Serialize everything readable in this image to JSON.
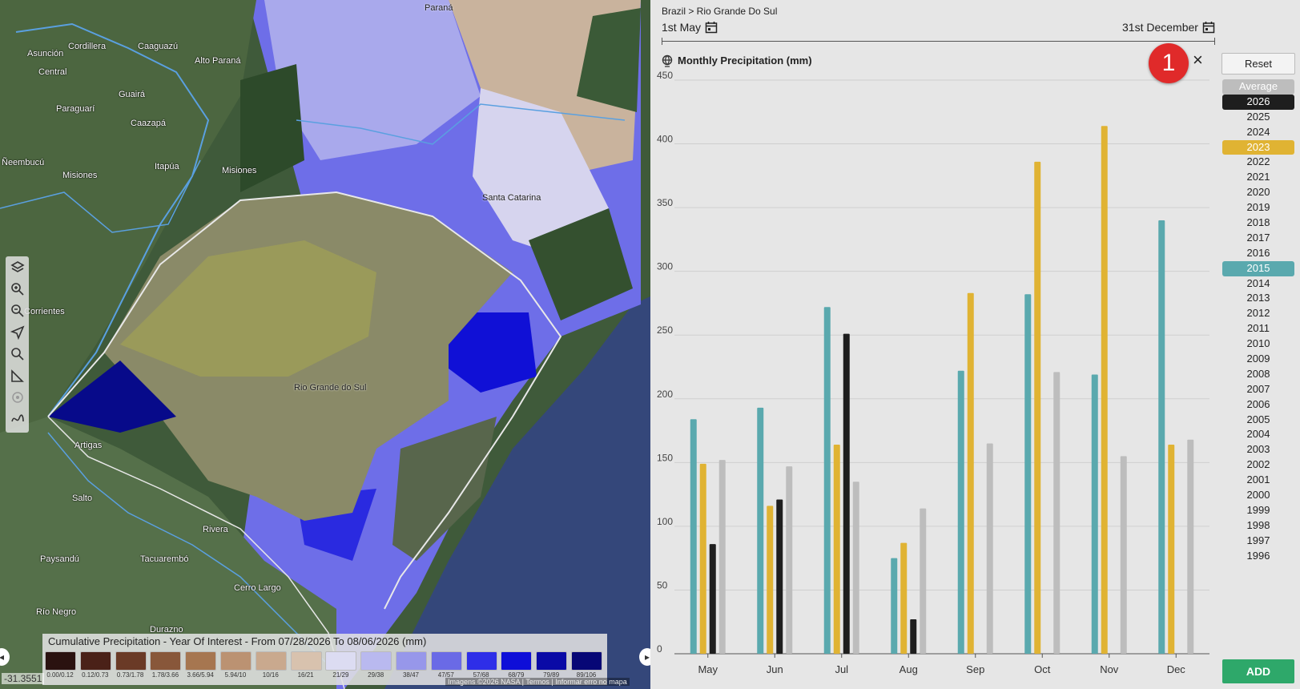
{
  "map": {
    "places": [
      "Paraná",
      "Cordillera",
      "Caaguazú",
      "Asunción",
      "Central",
      "Alto Paraná",
      "Paraguarí",
      "Guairá",
      "Caazapá",
      "Ñeembucú",
      "Itapúa",
      "Misiones",
      "Misiones",
      "Santa Catarina",
      "Corrientes",
      "Rio Grande do Sul",
      "Artigas",
      "Salto",
      "Rivera",
      "Paysandú",
      "Tacuarembó",
      "Cerro Largo",
      "Río Negro",
      "Durazno"
    ],
    "coordinate": "-31.3551",
    "attribution": "Imagens ©2026 NASA | Termos | Informar erro no mapa",
    "toolbar": [
      {
        "name": "layers-icon"
      },
      {
        "name": "zoom-in-icon"
      },
      {
        "name": "zoom-out-icon"
      },
      {
        "name": "locate-icon"
      },
      {
        "name": "search-icon"
      },
      {
        "name": "measure-icon"
      },
      {
        "name": "target-icon"
      },
      {
        "name": "draw-icon"
      }
    ]
  },
  "legend": {
    "title": "Cumulative Precipitation - Year Of Interest - From 07/28/2026 To 08/06/2026 (mm)",
    "items": [
      {
        "label": "0.00/0.12",
        "color": "#2a1210"
      },
      {
        "label": "0.12/0.73",
        "color": "#4a2118"
      },
      {
        "label": "0.73/1.78",
        "color": "#6a3a26"
      },
      {
        "label": "1.78/3.66",
        "color": "#88573a"
      },
      {
        "label": "3.66/5.94",
        "color": "#a67650"
      },
      {
        "label": "5.94/10",
        "color": "#bb9272"
      },
      {
        "label": "10/16",
        "color": "#c9a98e"
      },
      {
        "label": "16/21",
        "color": "#d8c2ae"
      },
      {
        "label": "21/29",
        "color": "#dcdcf2"
      },
      {
        "label": "29/38",
        "color": "#b9b9ef"
      },
      {
        "label": "38/47",
        "color": "#9797ea"
      },
      {
        "label": "47/57",
        "color": "#6a6ae6"
      },
      {
        "label": "57/68",
        "color": "#2e2ee8"
      },
      {
        "label": "68/79",
        "color": "#0e0ed8"
      },
      {
        "label": "79/89",
        "color": "#0a0aa6"
      },
      {
        "label": "89/106",
        "color": "#070776"
      }
    ]
  },
  "panel": {
    "breadcrumb": "Brazil > Rio Grande Do Sul",
    "start_date": "1st May",
    "end_date": "31st December",
    "chart_title": "Monthly Precipitation (mm)",
    "badge": "1",
    "close_label": "×",
    "reset_label": "Reset",
    "add_label": "ADD",
    "years": [
      {
        "label": "Average",
        "color": "#bdbdbd",
        "text": "#ffffff"
      },
      {
        "label": "2026",
        "color": "#1e1e1e",
        "text": "#ffffff"
      },
      {
        "label": "2025"
      },
      {
        "label": "2024"
      },
      {
        "label": "2023",
        "color": "#e0b333",
        "text": "#ffffff"
      },
      {
        "label": "2022"
      },
      {
        "label": "2021"
      },
      {
        "label": "2020"
      },
      {
        "label": "2019"
      },
      {
        "label": "2018"
      },
      {
        "label": "2017"
      },
      {
        "label": "2016"
      },
      {
        "label": "2015",
        "color": "#5aa9ae",
        "text": "#ffffff"
      },
      {
        "label": "2014"
      },
      {
        "label": "2013"
      },
      {
        "label": "2012"
      },
      {
        "label": "2011"
      },
      {
        "label": "2010"
      },
      {
        "label": "2009"
      },
      {
        "label": "2008"
      },
      {
        "label": "2007"
      },
      {
        "label": "2006"
      },
      {
        "label": "2005"
      },
      {
        "label": "2004"
      },
      {
        "label": "2003"
      },
      {
        "label": "2002"
      },
      {
        "label": "2001"
      },
      {
        "label": "2000"
      },
      {
        "label": "1999"
      },
      {
        "label": "1998"
      },
      {
        "label": "1997"
      },
      {
        "label": "1996"
      }
    ]
  },
  "chart_data": {
    "type": "bar",
    "title": "Monthly Precipitation (mm)",
    "categories": [
      "May",
      "Jun",
      "Jul",
      "Aug",
      "Sep",
      "Oct",
      "Nov",
      "Dec"
    ],
    "ylim": [
      0,
      450
    ],
    "yticks": [
      0,
      50,
      100,
      150,
      200,
      250,
      300,
      350,
      400,
      450
    ],
    "grid": true,
    "series": [
      {
        "name": "2015",
        "color": "#5aa9ae",
        "values": [
          184,
          193,
          272,
          75,
          222,
          282,
          219,
          340
        ]
      },
      {
        "name": "2023",
        "color": "#e0b333",
        "values": [
          149,
          116,
          164,
          87,
          283,
          386,
          414,
          164
        ]
      },
      {
        "name": "2026",
        "color": "#1e1e1e",
        "values": [
          86,
          121,
          251,
          27,
          null,
          null,
          null,
          null
        ]
      },
      {
        "name": "Average",
        "color": "#bdbdbd",
        "values": [
          152,
          147,
          135,
          114,
          165,
          221,
          155,
          168
        ]
      }
    ]
  }
}
